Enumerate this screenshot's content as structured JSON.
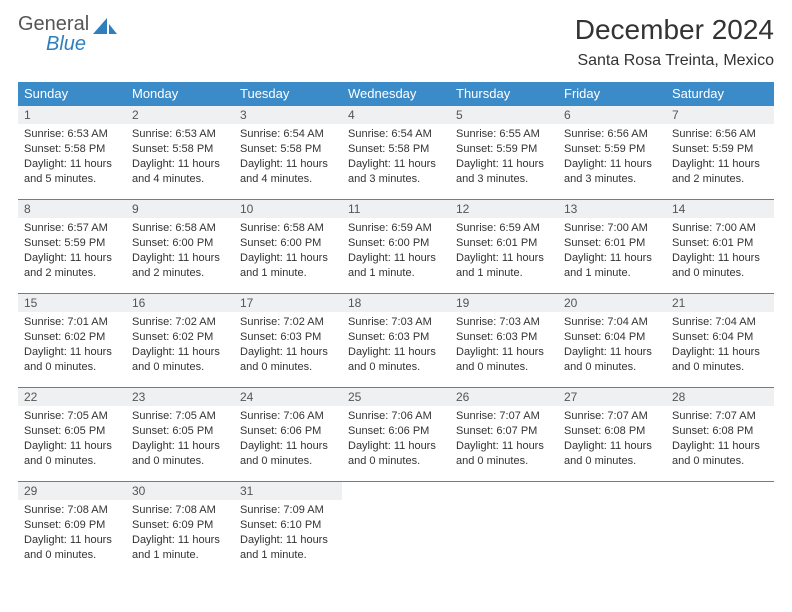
{
  "logo": {
    "text1": "General",
    "text2": "Blue"
  },
  "colors": {
    "header_bg": "#3b8bc9",
    "header_fg": "#ffffff",
    "daynum_bg": "#eef0f2",
    "border": "#3b8bc9",
    "logo_blue": "#2f7fbf",
    "text": "#333333"
  },
  "title": "December 2024",
  "location": "Santa Rosa Treinta, Mexico",
  "weekdays": [
    "Sunday",
    "Monday",
    "Tuesday",
    "Wednesday",
    "Thursday",
    "Friday",
    "Saturday"
  ],
  "weeks": [
    [
      {
        "n": "1",
        "sr": "Sunrise: 6:53 AM",
        "ss": "Sunset: 5:58 PM",
        "dl": "Daylight: 11 hours and 5 minutes."
      },
      {
        "n": "2",
        "sr": "Sunrise: 6:53 AM",
        "ss": "Sunset: 5:58 PM",
        "dl": "Daylight: 11 hours and 4 minutes."
      },
      {
        "n": "3",
        "sr": "Sunrise: 6:54 AM",
        "ss": "Sunset: 5:58 PM",
        "dl": "Daylight: 11 hours and 4 minutes."
      },
      {
        "n": "4",
        "sr": "Sunrise: 6:54 AM",
        "ss": "Sunset: 5:58 PM",
        "dl": "Daylight: 11 hours and 3 minutes."
      },
      {
        "n": "5",
        "sr": "Sunrise: 6:55 AM",
        "ss": "Sunset: 5:59 PM",
        "dl": "Daylight: 11 hours and 3 minutes."
      },
      {
        "n": "6",
        "sr": "Sunrise: 6:56 AM",
        "ss": "Sunset: 5:59 PM",
        "dl": "Daylight: 11 hours and 3 minutes."
      },
      {
        "n": "7",
        "sr": "Sunrise: 6:56 AM",
        "ss": "Sunset: 5:59 PM",
        "dl": "Daylight: 11 hours and 2 minutes."
      }
    ],
    [
      {
        "n": "8",
        "sr": "Sunrise: 6:57 AM",
        "ss": "Sunset: 5:59 PM",
        "dl": "Daylight: 11 hours and 2 minutes."
      },
      {
        "n": "9",
        "sr": "Sunrise: 6:58 AM",
        "ss": "Sunset: 6:00 PM",
        "dl": "Daylight: 11 hours and 2 minutes."
      },
      {
        "n": "10",
        "sr": "Sunrise: 6:58 AM",
        "ss": "Sunset: 6:00 PM",
        "dl": "Daylight: 11 hours and 1 minute."
      },
      {
        "n": "11",
        "sr": "Sunrise: 6:59 AM",
        "ss": "Sunset: 6:00 PM",
        "dl": "Daylight: 11 hours and 1 minute."
      },
      {
        "n": "12",
        "sr": "Sunrise: 6:59 AM",
        "ss": "Sunset: 6:01 PM",
        "dl": "Daylight: 11 hours and 1 minute."
      },
      {
        "n": "13",
        "sr": "Sunrise: 7:00 AM",
        "ss": "Sunset: 6:01 PM",
        "dl": "Daylight: 11 hours and 1 minute."
      },
      {
        "n": "14",
        "sr": "Sunrise: 7:00 AM",
        "ss": "Sunset: 6:01 PM",
        "dl": "Daylight: 11 hours and 0 minutes."
      }
    ],
    [
      {
        "n": "15",
        "sr": "Sunrise: 7:01 AM",
        "ss": "Sunset: 6:02 PM",
        "dl": "Daylight: 11 hours and 0 minutes."
      },
      {
        "n": "16",
        "sr": "Sunrise: 7:02 AM",
        "ss": "Sunset: 6:02 PM",
        "dl": "Daylight: 11 hours and 0 minutes."
      },
      {
        "n": "17",
        "sr": "Sunrise: 7:02 AM",
        "ss": "Sunset: 6:03 PM",
        "dl": "Daylight: 11 hours and 0 minutes."
      },
      {
        "n": "18",
        "sr": "Sunrise: 7:03 AM",
        "ss": "Sunset: 6:03 PM",
        "dl": "Daylight: 11 hours and 0 minutes."
      },
      {
        "n": "19",
        "sr": "Sunrise: 7:03 AM",
        "ss": "Sunset: 6:03 PM",
        "dl": "Daylight: 11 hours and 0 minutes."
      },
      {
        "n": "20",
        "sr": "Sunrise: 7:04 AM",
        "ss": "Sunset: 6:04 PM",
        "dl": "Daylight: 11 hours and 0 minutes."
      },
      {
        "n": "21",
        "sr": "Sunrise: 7:04 AM",
        "ss": "Sunset: 6:04 PM",
        "dl": "Daylight: 11 hours and 0 minutes."
      }
    ],
    [
      {
        "n": "22",
        "sr": "Sunrise: 7:05 AM",
        "ss": "Sunset: 6:05 PM",
        "dl": "Daylight: 11 hours and 0 minutes."
      },
      {
        "n": "23",
        "sr": "Sunrise: 7:05 AM",
        "ss": "Sunset: 6:05 PM",
        "dl": "Daylight: 11 hours and 0 minutes."
      },
      {
        "n": "24",
        "sr": "Sunrise: 7:06 AM",
        "ss": "Sunset: 6:06 PM",
        "dl": "Daylight: 11 hours and 0 minutes."
      },
      {
        "n": "25",
        "sr": "Sunrise: 7:06 AM",
        "ss": "Sunset: 6:06 PM",
        "dl": "Daylight: 11 hours and 0 minutes."
      },
      {
        "n": "26",
        "sr": "Sunrise: 7:07 AM",
        "ss": "Sunset: 6:07 PM",
        "dl": "Daylight: 11 hours and 0 minutes."
      },
      {
        "n": "27",
        "sr": "Sunrise: 7:07 AM",
        "ss": "Sunset: 6:08 PM",
        "dl": "Daylight: 11 hours and 0 minutes."
      },
      {
        "n": "28",
        "sr": "Sunrise: 7:07 AM",
        "ss": "Sunset: 6:08 PM",
        "dl": "Daylight: 11 hours and 0 minutes."
      }
    ],
    [
      {
        "n": "29",
        "sr": "Sunrise: 7:08 AM",
        "ss": "Sunset: 6:09 PM",
        "dl": "Daylight: 11 hours and 0 minutes."
      },
      {
        "n": "30",
        "sr": "Sunrise: 7:08 AM",
        "ss": "Sunset: 6:09 PM",
        "dl": "Daylight: 11 hours and 1 minute."
      },
      {
        "n": "31",
        "sr": "Sunrise: 7:09 AM",
        "ss": "Sunset: 6:10 PM",
        "dl": "Daylight: 11 hours and 1 minute."
      },
      null,
      null,
      null,
      null
    ]
  ]
}
